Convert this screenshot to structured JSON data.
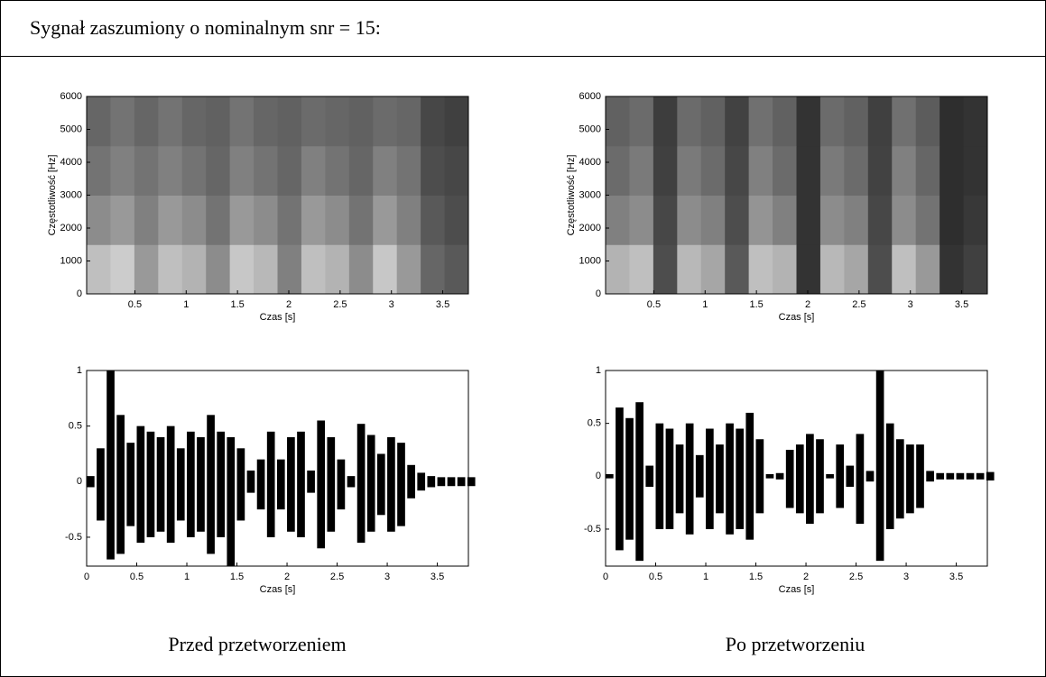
{
  "header": {
    "title": "Sygnał zaszumiony o nominalnym snr = 15:"
  },
  "captions": [
    "Przed przetworzeniem",
    "Po przetworzeniu"
  ],
  "chart_data": [
    {
      "type": "heatmap",
      "colormap": "gray",
      "xlabel": "Czas [s]",
      "ylabel": "Częstotliwość [Hz]",
      "xlim": [
        0.03,
        3.75
      ],
      "ylim": [
        0,
        6000
      ],
      "xticks": [
        0.5,
        1,
        1.5,
        2,
        2.5,
        3,
        3.5
      ],
      "yticks": [
        0,
        1000,
        2000,
        3000,
        4000,
        5000,
        6000
      ],
      "z": [
        [
          0.75,
          0.8,
          0.6,
          0.75,
          0.7,
          0.55,
          0.78,
          0.72,
          0.5,
          0.75,
          0.7,
          0.55,
          0.78,
          0.6,
          0.4,
          0.35
        ],
        [
          0.55,
          0.6,
          0.5,
          0.6,
          0.55,
          0.45,
          0.6,
          0.55,
          0.45,
          0.6,
          0.55,
          0.45,
          0.6,
          0.5,
          0.35,
          0.3
        ],
        [
          0.45,
          0.5,
          0.45,
          0.5,
          0.45,
          0.4,
          0.5,
          0.45,
          0.4,
          0.5,
          0.45,
          0.4,
          0.5,
          0.45,
          0.3,
          0.28
        ],
        [
          0.4,
          0.45,
          0.4,
          0.45,
          0.4,
          0.38,
          0.45,
          0.4,
          0.38,
          0.42,
          0.4,
          0.38,
          0.42,
          0.4,
          0.28,
          0.25
        ]
      ]
    },
    {
      "type": "heatmap",
      "colormap": "gray",
      "xlabel": "Czas [s]",
      "ylabel": "Częstotliwość [Hz]",
      "xlim": [
        0.03,
        3.75
      ],
      "ylim": [
        0,
        6000
      ],
      "xticks": [
        0.5,
        1,
        1.5,
        2,
        2.5,
        3,
        3.5
      ],
      "yticks": [
        0,
        1000,
        2000,
        3000,
        4000,
        5000,
        6000
      ],
      "z": [
        [
          0.7,
          0.75,
          0.3,
          0.72,
          0.65,
          0.35,
          0.75,
          0.7,
          0.2,
          0.72,
          0.65,
          0.3,
          0.75,
          0.6,
          0.2,
          0.25
        ],
        [
          0.5,
          0.55,
          0.28,
          0.55,
          0.5,
          0.3,
          0.58,
          0.5,
          0.2,
          0.55,
          0.5,
          0.28,
          0.55,
          0.45,
          0.18,
          0.22
        ],
        [
          0.42,
          0.48,
          0.25,
          0.48,
          0.42,
          0.28,
          0.5,
          0.42,
          0.2,
          0.48,
          0.42,
          0.26,
          0.5,
          0.4,
          0.18,
          0.2
        ],
        [
          0.38,
          0.42,
          0.24,
          0.42,
          0.38,
          0.26,
          0.44,
          0.38,
          0.2,
          0.42,
          0.38,
          0.25,
          0.44,
          0.36,
          0.18,
          0.2
        ]
      ]
    },
    {
      "type": "waveform",
      "color": "#000000",
      "xlabel": "Czas [s]",
      "xlim": [
        0,
        3.81
      ],
      "ylim": [
        -0.76,
        1
      ],
      "xticks": [
        0,
        0.5,
        1,
        1.5,
        2,
        2.5,
        3,
        3.5
      ],
      "yticks": [
        -0.5,
        0,
        0.5,
        1
      ],
      "x": [
        0,
        0.1,
        0.2,
        0.3,
        0.4,
        0.5,
        0.6,
        0.7,
        0.8,
        0.9,
        1.0,
        1.1,
        1.2,
        1.3,
        1.4,
        1.5,
        1.6,
        1.7,
        1.8,
        1.9,
        2.0,
        2.1,
        2.2,
        2.3,
        2.4,
        2.5,
        2.6,
        2.7,
        2.8,
        2.9,
        3.0,
        3.1,
        3.2,
        3.3,
        3.4,
        3.5,
        3.6,
        3.7,
        3.8
      ],
      "upper": [
        0.05,
        0.3,
        1.0,
        0.6,
        0.35,
        0.5,
        0.45,
        0.4,
        0.5,
        0.3,
        0.45,
        0.4,
        0.6,
        0.45,
        0.4,
        0.3,
        0.1,
        0.2,
        0.45,
        0.2,
        0.4,
        0.45,
        0.1,
        0.55,
        0.4,
        0.2,
        0.05,
        0.52,
        0.42,
        0.25,
        0.4,
        0.35,
        0.15,
        0.08,
        0.05,
        0.04,
        0.04,
        0.04,
        0.04
      ],
      "lower": [
        -0.05,
        -0.35,
        -0.7,
        -0.65,
        -0.4,
        -0.55,
        -0.5,
        -0.45,
        -0.55,
        -0.35,
        -0.5,
        -0.45,
        -0.65,
        -0.5,
        -0.76,
        -0.35,
        -0.1,
        -0.25,
        -0.5,
        -0.25,
        -0.45,
        -0.5,
        -0.1,
        -0.6,
        -0.45,
        -0.25,
        -0.05,
        -0.55,
        -0.45,
        -0.3,
        -0.45,
        -0.4,
        -0.15,
        -0.08,
        -0.05,
        -0.04,
        -0.04,
        -0.04,
        -0.04
      ]
    },
    {
      "type": "waveform",
      "color": "#000000",
      "xlabel": "Czas [s]",
      "xlim": [
        0,
        3.81
      ],
      "ylim": [
        -0.85,
        1
      ],
      "xticks": [
        0,
        0.5,
        1,
        1.5,
        2,
        2.5,
        3,
        3.5
      ],
      "yticks": [
        -0.5,
        0,
        0.5,
        1
      ],
      "x": [
        0,
        0.1,
        0.2,
        0.3,
        0.4,
        0.5,
        0.6,
        0.7,
        0.8,
        0.9,
        1.0,
        1.1,
        1.2,
        1.3,
        1.4,
        1.5,
        1.6,
        1.7,
        1.8,
        1.9,
        2.0,
        2.1,
        2.2,
        2.3,
        2.4,
        2.5,
        2.6,
        2.7,
        2.8,
        2.9,
        3.0,
        3.1,
        3.2,
        3.3,
        3.4,
        3.5,
        3.6,
        3.7,
        3.8
      ],
      "upper": [
        0.02,
        0.65,
        0.55,
        0.7,
        0.1,
        0.5,
        0.45,
        0.3,
        0.5,
        0.2,
        0.45,
        0.3,
        0.5,
        0.45,
        0.6,
        0.35,
        0.02,
        0.03,
        0.25,
        0.3,
        0.4,
        0.35,
        0.02,
        0.3,
        0.1,
        0.4,
        0.05,
        1.0,
        0.5,
        0.35,
        0.3,
        0.3,
        0.05,
        0.03,
        0.03,
        0.03,
        0.03,
        0.03,
        0.04
      ],
      "lower": [
        -0.02,
        -0.7,
        -0.6,
        -0.8,
        -0.1,
        -0.5,
        -0.5,
        -0.35,
        -0.55,
        -0.2,
        -0.5,
        -0.35,
        -0.55,
        -0.5,
        -0.6,
        -0.35,
        -0.02,
        -0.03,
        -0.3,
        -0.35,
        -0.45,
        -0.35,
        -0.02,
        -0.3,
        -0.1,
        -0.45,
        -0.05,
        -0.8,
        -0.5,
        -0.4,
        -0.35,
        -0.3,
        -0.05,
        -0.03,
        -0.03,
        -0.03,
        -0.03,
        -0.03,
        -0.04
      ]
    }
  ]
}
